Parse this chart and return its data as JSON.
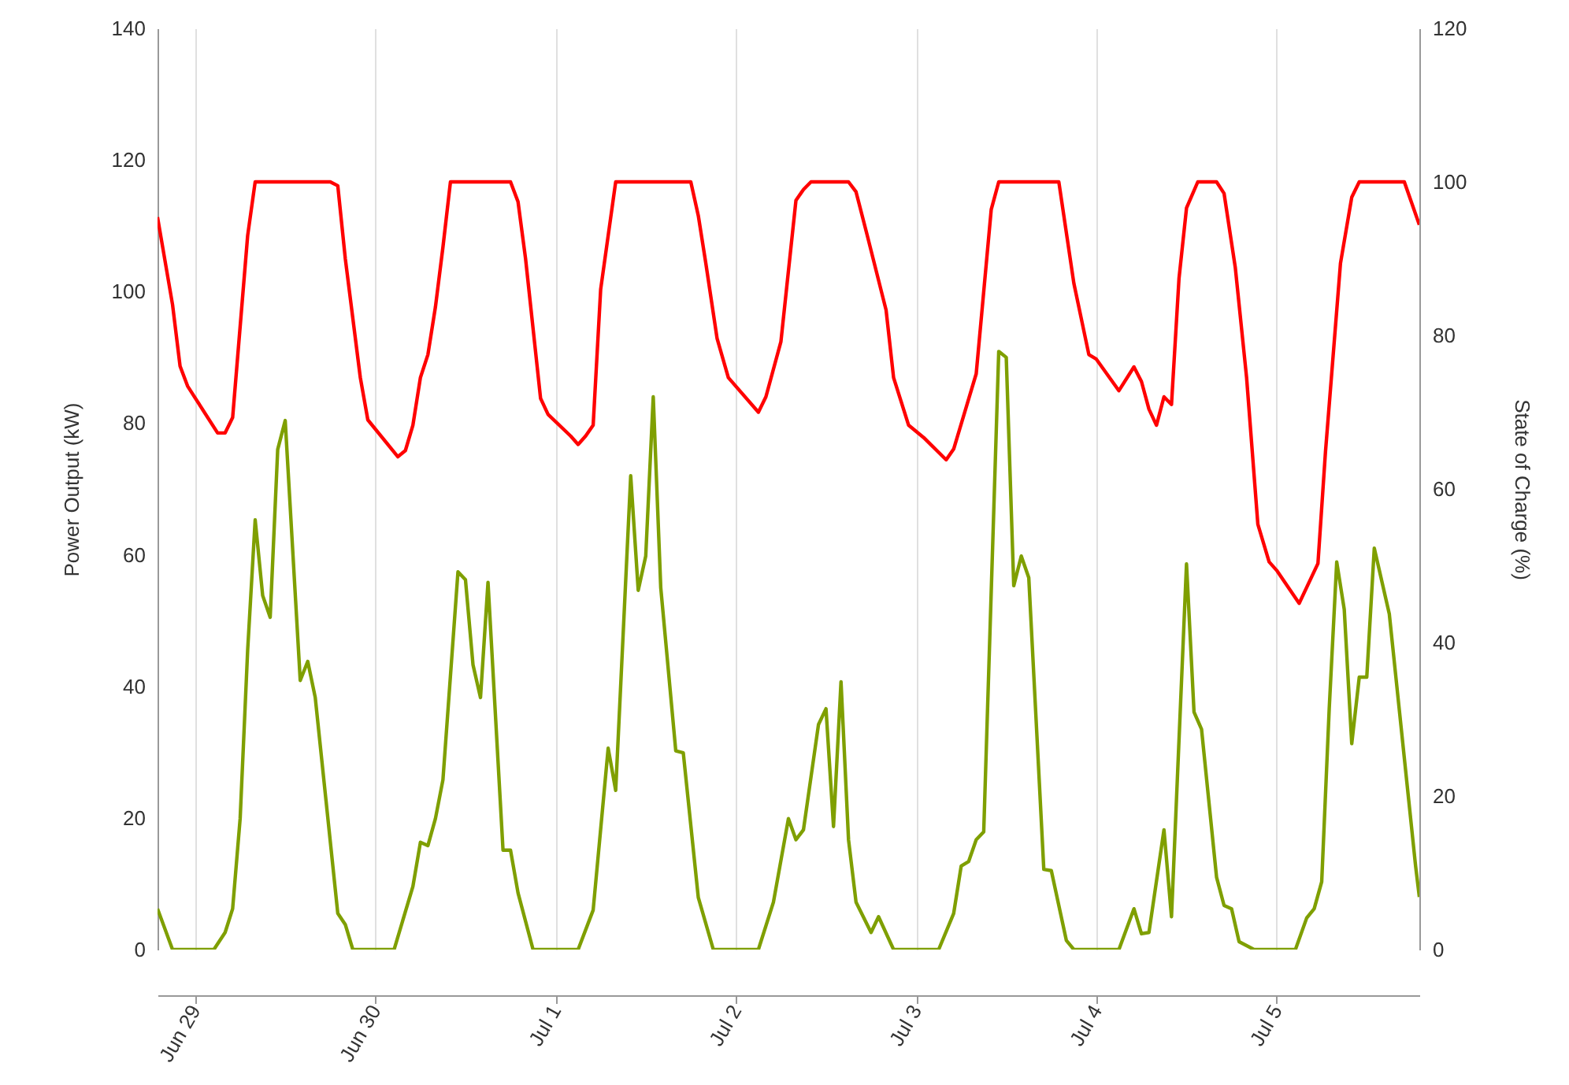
{
  "chart_data": {
    "type": "line",
    "ylabel": "Power Output (kW)",
    "y2label": "State of Charge (%)",
    "xlim": [
      "--06-28T19:00",
      "--07-05T19:00"
    ],
    "xticks": [
      {
        "value": "--06-29",
        "label": "Jun 29"
      },
      {
        "value": "--06-30",
        "label": "Jun 30"
      },
      {
        "value": "--07-01",
        "label": "Jul 1"
      },
      {
        "value": "--07-02",
        "label": "Jul 2"
      },
      {
        "value": "--07-03",
        "label": "Jul 3"
      },
      {
        "value": "--07-04",
        "label": "Jul 4"
      },
      {
        "value": "--07-05",
        "label": "Jul 5"
      }
    ],
    "ylim": [
      0,
      140
    ],
    "yticks": [
      0,
      20,
      40,
      60,
      80,
      100,
      120,
      140
    ],
    "y2lim": [
      0,
      120
    ],
    "y2ticks": [
      0,
      20,
      40,
      60,
      80,
      100,
      120
    ],
    "grid": "x",
    "series": [
      {
        "color": "#7f9f00",
        "x": [
          "--06-28T19:00",
          "--06-28T21:00",
          "--06-29T02:30",
          "--06-29T04:00",
          "--06-29T05:00",
          "--06-29T06:00",
          "--06-29T07:00",
          "--06-29T08:00",
          "--06-29T09:00",
          "--06-29T10:00",
          "--06-29T11:00",
          "--06-29T12:00",
          "--06-29T14:00",
          "--06-29T15:00",
          "--06-29T16:00",
          "--06-29T19:00",
          "--06-29T20:00",
          "--06-29T21:00",
          "--06-30T02:30",
          "--06-30T05:00",
          "--06-30T06:00",
          "--06-30T07:00",
          "--06-30T08:00",
          "--06-30T09:00",
          "--06-30T11:00",
          "--06-30T12:00",
          "--06-30T13:00",
          "--06-30T14:00",
          "--06-30T15:00",
          "--06-30T17:00",
          "--06-30T18:00",
          "--06-30T19:00",
          "--06-30T21:00",
          "--07-01T03:00",
          "--07-01T05:00",
          "--07-01T07:00",
          "--07-01T08:00",
          "--07-01T10:00",
          "--07-01T11:00",
          "--07-01T12:00",
          "--07-01T13:00",
          "--07-01T14:00",
          "--07-01T16:00",
          "--07-01T17:00",
          "--07-01T19:00",
          "--07-01T21:00",
          "--07-02T03:00",
          "--07-02T05:00",
          "--07-02T07:00",
          "--07-02T08:00",
          "--07-02T09:00",
          "--07-02T11:00",
          "--07-02T12:00",
          "--07-02T13:00",
          "--07-02T14:00",
          "--07-02T15:00",
          "--07-02T16:00",
          "--07-02T18:00",
          "--07-02T19:00",
          "--07-02T21:00",
          "--07-03T03:00",
          "--07-03T05:00",
          "--07-03T06:00",
          "--07-03T07:00",
          "--07-03T08:00",
          "--07-03T09:00",
          "--07-03T11:00",
          "--07-03T12:00",
          "--07-03T13:00",
          "--07-03T14:00",
          "--07-03T15:00",
          "--07-03T17:00",
          "--07-03T18:00",
          "--07-03T20:00",
          "--07-03T21:00",
          "--07-04T03:00",
          "--07-04T05:00",
          "--07-04T06:00",
          "--07-04T07:00",
          "--07-04T09:00",
          "--07-04T10:00",
          "--07-04T12:00",
          "--07-04T13:00",
          "--07-04T14:00",
          "--07-04T16:00",
          "--07-04T17:00",
          "--07-04T18:00",
          "--07-04T19:00",
          "--07-04T21:00",
          "--07-05T02:30",
          "--07-05T04:00",
          "--07-05T05:00",
          "--07-05T06:00",
          "--07-05T07:00",
          "--07-05T08:00",
          "--07-05T09:00",
          "--07-05T10:00",
          "--07-05T11:00",
          "--07-05T12:00",
          "--07-05T13:00",
          "--07-05T15:00",
          "--07-05T18:30",
          "--07-05T19:00"
        ],
        "values": [
          6.2,
          0,
          0,
          2.6,
          6.2,
          19.9,
          45.5,
          65.3,
          53.8,
          50.5,
          76,
          80.4,
          40.9,
          43.8,
          38.3,
          5.5,
          3.8,
          0,
          0,
          9.6,
          16.3,
          15.8,
          19.9,
          25.8,
          57.4,
          56.2,
          43.3,
          38.3,
          55.8,
          15.1,
          15.1,
          8.6,
          0,
          0,
          6,
          30.6,
          24.2,
          72,
          54.6,
          59.8,
          84,
          55,
          30.2,
          29.9,
          7.9,
          0,
          0,
          7.2,
          19.9,
          16.7,
          18.2,
          34.2,
          36.6,
          18.7,
          40.7,
          16.7,
          7.2,
          2.6,
          5,
          0,
          0,
          5.5,
          12.7,
          13.4,
          16.7,
          17.9,
          90.9,
          90,
          55.3,
          59.8,
          56.5,
          12.2,
          12,
          1.4,
          0,
          0,
          6.2,
          2.4,
          2.6,
          18.2,
          5,
          58.6,
          36.1,
          33.5,
          11,
          6.7,
          6.2,
          1.2,
          0,
          0,
          4.8,
          6.2,
          10.3,
          36.6,
          58.9,
          51.7,
          31.3,
          41.4,
          41.4,
          61,
          51,
          12.7,
          8
        ]
      },
      {
        "color": "#ff0000",
        "axis": "y2",
        "x": [
          "--06-28T19:00",
          "--06-28T21:00",
          "--06-28T22:00",
          "--06-28T23:00",
          "--06-29T03:00",
          "--06-29T04:00",
          "--06-29T05:00",
          "--06-29T07:00",
          "--06-29T08:00",
          "--06-29T18:00",
          "--06-29T19:00",
          "--06-29T20:00",
          "--06-29T22:00",
          "--06-29T23:00",
          "--06-30T03:00",
          "--06-30T04:00",
          "--06-30T05:00",
          "--06-30T06:00",
          "--06-30T07:00",
          "--06-30T08:00",
          "--06-30T09:00",
          "--06-30T10:00",
          "--06-30T18:00",
          "--06-30T19:00",
          "--06-30T20:00",
          "--06-30T22:00",
          "--06-30T23:00",
          "--07-01T02:00",
          "--07-01T03:00",
          "--07-01T04:00",
          "--07-01T05:00",
          "--07-01T06:00",
          "--07-01T08:00",
          "--07-01T18:00",
          "--07-01T19:00",
          "--07-01T20:00",
          "--07-01T21:30",
          "--07-01T23:00",
          "--07-02T03:00",
          "--07-02T04:00",
          "--07-02T06:00",
          "--07-02T08:00",
          "--07-02T09:00",
          "--07-02T10:00",
          "--07-02T15:00",
          "--07-02T16:00",
          "--07-02T17:30",
          "--07-02T20:00",
          "--07-02T21:00",
          "--07-02T23:00",
          "--07-03T01:00",
          "--07-03T04:00",
          "--07-03T05:00",
          "--07-03T08:00",
          "--07-03T10:00",
          "--07-03T11:00",
          "--07-03T19:00",
          "--07-03T21:00",
          "--07-03T23:00",
          "--07-04T00:00",
          "--07-04T03:00",
          "--07-04T05:00",
          "--07-04T06:00",
          "--07-04T07:00",
          "--07-04T08:00",
          "--07-04T09:00",
          "--07-04T10:00",
          "--07-04T11:00",
          "--07-04T12:00",
          "--07-04T13:30",
          "--07-04T16:00",
          "--07-04T17:00",
          "--07-04T18:30",
          "--07-04T20:00",
          "--07-04T21:30",
          "--07-04T23:00",
          "--07-05T00:00",
          "--07-05T03:00",
          "--07-05T05:30",
          "--07-05T06:30",
          "--07-05T08:30",
          "--07-05T10:00",
          "--07-05T11:00",
          "--07-05T17:00",
          "--07-05T19:00"
        ],
        "values": [
          95.4,
          84,
          76,
          73.4,
          67.3,
          67.3,
          69.3,
          93,
          100,
          100,
          99.5,
          90,
          74.5,
          69,
          64.2,
          65,
          68.3,
          74.5,
          77.5,
          83.7,
          91.5,
          100,
          100,
          97.4,
          90,
          71.8,
          69.7,
          66.9,
          65.8,
          66.9,
          68.3,
          86,
          100,
          100,
          95.6,
          89.4,
          79.6,
          74.5,
          70,
          72,
          79.2,
          97.6,
          99,
          100,
          100,
          98.7,
          93,
          83.3,
          74.5,
          68.3,
          66.7,
          63.8,
          65.2,
          75,
          96.4,
          100,
          100,
          86.8,
          77.5,
          76.9,
          72.8,
          75.9,
          74,
          70.4,
          68.3,
          72,
          71,
          87.4,
          96.6,
          100,
          100,
          98.5,
          88.8,
          74.5,
          55.4,
          50.5,
          49.4,
          45.1,
          50.3,
          64.8,
          89.4,
          98,
          100,
          100,
          94.4
        ]
      }
    ]
  }
}
